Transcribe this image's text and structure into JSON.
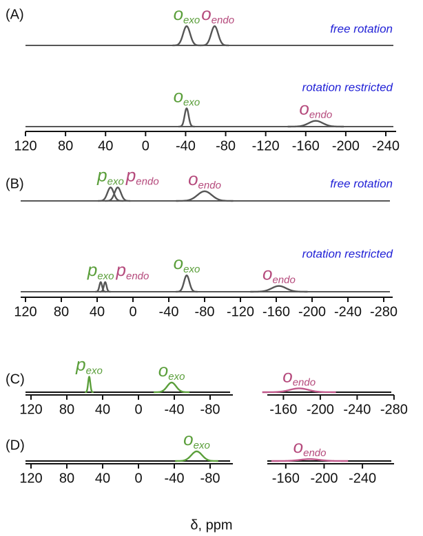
{
  "chart_data": [
    {
      "type": "spectrum",
      "panel": "(A)",
      "xlim": [
        120,
        -240
      ],
      "xticks": [
        120,
        80,
        40,
        0,
        -40,
        -80,
        -120,
        -160,
        -200,
        -240
      ],
      "traces": [
        {
          "caption": "free rotation",
          "color": "#555555",
          "peaks": [
            {
              "x": -41,
              "height": 1,
              "width": 3.5,
              "label": {
                "main": "o",
                "sub": "exo",
                "color": "#5a9e3a"
              }
            },
            {
              "x": -69,
              "height": 1,
              "width": 3.5,
              "label": {
                "main": "o",
                "sub": "endo",
                "color": "#b54a7c"
              }
            }
          ]
        },
        {
          "caption": "rotation restricted",
          "color": "#555555",
          "peaks": [
            {
              "x": -41,
              "height": 0.95,
              "width": 2,
              "label": {
                "main": "o",
                "sub": "exo",
                "color": "#5a9e3a"
              }
            },
            {
              "x": -170,
              "height": 0.3,
              "width": 7,
              "label": {
                "main": "o",
                "sub": "endo",
                "color": "#b54a7c"
              }
            }
          ]
        }
      ]
    },
    {
      "type": "spectrum",
      "panel": "(B)",
      "xlim": [
        120,
        -280
      ],
      "xticks": [
        120,
        80,
        40,
        0,
        -40,
        -80,
        -120,
        -160,
        -200,
        -240,
        -280
      ],
      "traces": [
        {
          "caption": "free rotation",
          "color": "#555555",
          "peaks": [
            {
              "x": 25,
              "height": 0.7,
              "width": 3.5,
              "label": {
                "main": "p",
                "sub": "exo",
                "color": "#5a9e3a"
              }
            },
            {
              "x": 17,
              "height": 0.7,
              "width": 3.5,
              "label": {
                "main": "p",
                "sub": "endo",
                "color": "#b54a7c"
              }
            },
            {
              "x": -80,
              "height": 0.5,
              "width": 8,
              "label": {
                "main": "o",
                "sub": "endo",
                "color": "#b54a7c"
              }
            }
          ]
        },
        {
          "caption": "rotation restricted",
          "color": "#555555",
          "peaks": [
            {
              "x": 36,
              "height": 0.5,
              "width": 1.5,
              "label": {
                "main": "p",
                "sub": "exo",
                "color": "#5a9e3a"
              }
            },
            {
              "x": 31,
              "height": 0.5,
              "width": 1.5,
              "label": {
                "main": "p",
                "sub": "endo",
                "color": "#b54a7c"
              }
            },
            {
              "x": -60,
              "height": 0.85,
              "width": 3,
              "label": {
                "main": "o",
                "sub": "exo",
                "color": "#5a9e3a"
              }
            },
            {
              "x": -163,
              "height": 0.3,
              "width": 8,
              "label": {
                "main": "o",
                "sub": "endo",
                "color": "#b54a7c"
              }
            }
          ]
        }
      ]
    },
    {
      "type": "spectrum",
      "panel": "(C)",
      "xlim": [
        120,
        -80
      ],
      "xticks": [
        120,
        80,
        40,
        0,
        -40,
        -80
      ],
      "traces": [
        {
          "color": "#111111",
          "peaks": [
            {
              "x": 55,
              "height": 0.8,
              "width": 1.2,
              "color": "#5a9e3a",
              "label": {
                "main": "p",
                "sub": "exo",
                "color": "#5a9e3a"
              }
            },
            {
              "x": -37,
              "height": 0.5,
              "width": 5,
              "color": "#5a9e3a",
              "label": {
                "main": "o",
                "sub": "exo",
                "color": "#5a9e3a"
              }
            }
          ]
        }
      ]
    },
    {
      "type": "spectrum",
      "xlim": [
        -140,
        -285
      ],
      "xticks": [
        -160,
        -200,
        -240,
        -280
      ],
      "traces": [
        {
          "color": "#111111",
          "peaks": [
            {
              "x": -177,
              "height": 0.2,
              "width": 10,
              "color": "#c0588a",
              "label": {
                "main": "o",
                "sub": "endo",
                "color": "#b54a7c"
              }
            }
          ]
        }
      ]
    },
    {
      "type": "spectrum",
      "panel": "(D)",
      "xlim": [
        120,
        -80
      ],
      "xticks": [
        120,
        80,
        40,
        0,
        -40,
        -80
      ],
      "traces": [
        {
          "color": "#111111",
          "peaks": [
            {
              "x": -65,
              "height": 0.5,
              "width": 6,
              "color": "#5a9e3a",
              "label": {
                "main": "o",
                "sub": "exo",
                "color": "#5a9e3a"
              }
            }
          ]
        }
      ]
    },
    {
      "type": "spectrum",
      "xlim": [
        -140,
        -250
      ],
      "xticks": [
        -160,
        -200,
        -240
      ],
      "xlabel": "δ, ppm",
      "traces": [
        {
          "color": "#111111",
          "peaks": [
            {
              "x": -185,
              "height": 0.1,
              "width": 10,
              "color": "#c0588a",
              "label": {
                "main": "o",
                "sub": "endo",
                "color": "#b54a7c"
              }
            }
          ]
        }
      ]
    }
  ]
}
